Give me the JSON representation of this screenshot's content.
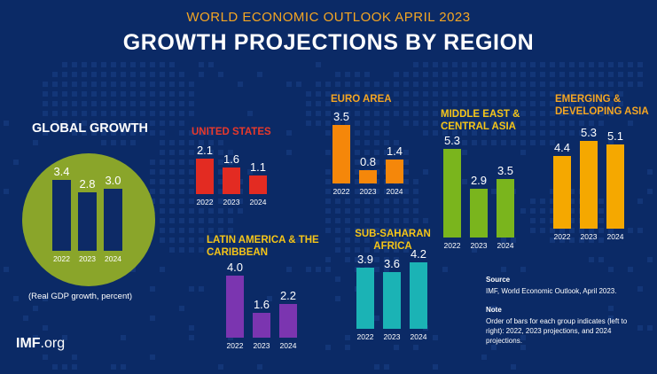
{
  "header": {
    "subtitle": "WORLD ECONOMIC OUTLOOK APRIL 2023",
    "title": "GROWTH PROJECTIONS BY REGION"
  },
  "colors": {
    "background": "#0b2a66",
    "global": "#0d2a66",
    "global_circle": "#8aa52a",
    "united_states": "#e32b22",
    "euro_area": "#f5870a",
    "middle_east": "#7ab51d",
    "emerging_asia": "#f5a800",
    "latin_america": "#7b35b0",
    "sub_saharan": "#1bb3b5"
  },
  "chart_data": [
    {
      "type": "bar",
      "id": "global",
      "title": "GLOBAL GROWTH",
      "categories": [
        "2022",
        "2023",
        "2024"
      ],
      "values": [
        3.4,
        2.8,
        3.0
      ],
      "labels": [
        "3.4",
        "2.8",
        "3.0"
      ]
    },
    {
      "type": "bar",
      "id": "united_states",
      "title": "UNITED STATES",
      "categories": [
        "2022",
        "2023",
        "2024"
      ],
      "values": [
        2.1,
        1.6,
        1.1
      ],
      "labels": [
        "2.1",
        "1.6",
        "1.1"
      ]
    },
    {
      "type": "bar",
      "id": "euro_area",
      "title": "EURO AREA",
      "categories": [
        "2022",
        "2023",
        "2024"
      ],
      "values": [
        3.5,
        0.8,
        1.4
      ],
      "labels": [
        "3.5",
        "0.8",
        "1.4"
      ]
    },
    {
      "type": "bar",
      "id": "middle_east",
      "title": "MIDDLE EAST & CENTRAL ASIA",
      "categories": [
        "2022",
        "2023",
        "2024"
      ],
      "values": [
        5.3,
        2.9,
        3.5
      ],
      "labels": [
        "5.3",
        "2.9",
        "3.5"
      ]
    },
    {
      "type": "bar",
      "id": "emerging_asia",
      "title": "EMERGING & DEVELOPING ASIA",
      "categories": [
        "2022",
        "2023",
        "2024"
      ],
      "values": [
        4.4,
        5.3,
        5.1
      ],
      "labels": [
        "4.4",
        "5.3",
        "5.1"
      ]
    },
    {
      "type": "bar",
      "id": "latin_america",
      "title": "LATIN AMERICA & THE CARIBBEAN",
      "categories": [
        "2022",
        "2023",
        "2024"
      ],
      "values": [
        4.0,
        1.6,
        2.2
      ],
      "labels": [
        "4.0",
        "1.6",
        "2.2"
      ]
    },
    {
      "type": "bar",
      "id": "sub_saharan",
      "title": "SUB-SAHARAN AFRICA",
      "categories": [
        "2022",
        "2023",
        "2024"
      ],
      "values": [
        3.9,
        3.6,
        4.2
      ],
      "labels": [
        "3.9",
        "3.6",
        "4.2"
      ]
    }
  ],
  "titles": {
    "global": "GLOBAL GROWTH",
    "united_states": "UNITED STATES",
    "euro_area": "EURO AREA",
    "middle_east_l1": "MIDDLE EAST &",
    "middle_east_l2": "CENTRAL ASIA",
    "emerging_asia_l1": "EMERGING &",
    "emerging_asia_l2": "DEVELOPING ASIA",
    "latin_america_l1": "LATIN AMERICA & THE",
    "latin_america_l2": "CARIBBEAN",
    "sub_saharan_l1": "SUB-SAHARAN",
    "sub_saharan_l2": "AFRICA"
  },
  "global_note": "(Real GDP growth, percent)",
  "logo": {
    "bold": "IMF",
    "rest": ".org"
  },
  "source": {
    "heading": "Source",
    "text": "IMF, World Economic Outlook, April 2023."
  },
  "note": {
    "heading": "Note",
    "text": "Order of bars for each group indicates (left to right): 2022, 2023 projections, and 2024 projections."
  }
}
